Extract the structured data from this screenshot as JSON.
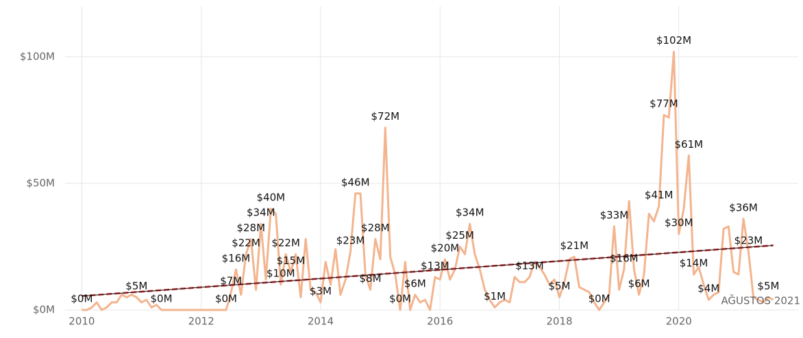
{
  "chart_data": {
    "type": "line",
    "annotation": "AĞUSTOS 2021",
    "x": [
      2010,
      2010.083,
      2010.167,
      2010.25,
      2010.333,
      2010.417,
      2010.5,
      2010.583,
      2010.667,
      2010.75,
      2010.833,
      2010.917,
      2011,
      2011.083,
      2011.167,
      2011.25,
      2011.333,
      2011.417,
      2011.5,
      2011.583,
      2011.667,
      2011.75,
      2011.833,
      2011.917,
      2012,
      2012.083,
      2012.167,
      2012.25,
      2012.333,
      2012.417,
      2012.5,
      2012.583,
      2012.667,
      2012.75,
      2012.833,
      2012.917,
      2013,
      2013.083,
      2013.167,
      2013.25,
      2013.333,
      2013.417,
      2013.5,
      2013.583,
      2013.667,
      2013.75,
      2013.833,
      2013.917,
      2014,
      2014.083,
      2014.167,
      2014.25,
      2014.333,
      2014.417,
      2014.5,
      2014.583,
      2014.667,
      2014.75,
      2014.833,
      2014.917,
      2015,
      2015.083,
      2015.167,
      2015.25,
      2015.333,
      2015.417,
      2015.5,
      2015.583,
      2015.667,
      2015.75,
      2015.833,
      2015.917,
      2016,
      2016.083,
      2016.167,
      2016.25,
      2016.333,
      2016.417,
      2016.5,
      2016.583,
      2016.667,
      2016.75,
      2016.833,
      2016.917,
      2017,
      2017.083,
      2017.167,
      2017.25,
      2017.333,
      2017.417,
      2017.5,
      2017.583,
      2017.667,
      2017.75,
      2017.833,
      2017.917,
      2018,
      2018.083,
      2018.167,
      2018.25,
      2018.333,
      2018.417,
      2018.5,
      2018.583,
      2018.667,
      2018.75,
      2018.833,
      2018.917,
      2019,
      2019.083,
      2019.167,
      2019.25,
      2019.333,
      2019.417,
      2019.5,
      2019.583,
      2019.667,
      2019.75,
      2019.833,
      2019.917,
      2020,
      2020.083,
      2020.167,
      2020.25,
      2020.333,
      2020.417,
      2020.5,
      2020.583,
      2020.667,
      2020.75,
      2020.833,
      2020.917,
      2021,
      2021.083,
      2021.167,
      2021.25,
      2021.333,
      2021.417,
      2021.5,
      2021.583
    ],
    "series": [
      {
        "color": "#f3b48e",
        "values": [
          0,
          0,
          1,
          3,
          0,
          1,
          3,
          3,
          6,
          5,
          6,
          5,
          3,
          4,
          1,
          2,
          0,
          0,
          0,
          0,
          0,
          0,
          0,
          0,
          0,
          0,
          0,
          0,
          0,
          0,
          7,
          16,
          6,
          22,
          28,
          8,
          34,
          12,
          40,
          38,
          10,
          22,
          15,
          22,
          5,
          28,
          8,
          7,
          3,
          19,
          10,
          24,
          6,
          12,
          23,
          46,
          46,
          14,
          8,
          28,
          20,
          72,
          21,
          14,
          0,
          19,
          0,
          6,
          3,
          4,
          0,
          13,
          12,
          20,
          12,
          16,
          25,
          22,
          34,
          22,
          16,
          8,
          4,
          1,
          3,
          4,
          3,
          13,
          11,
          11,
          13,
          19,
          17,
          14,
          10,
          12,
          5,
          11,
          20,
          21,
          9,
          8,
          7,
          3,
          0,
          3,
          6,
          33,
          8,
          16,
          43,
          16,
          6,
          14,
          38,
          35,
          41,
          77,
          76,
          102,
          30,
          40,
          61,
          14,
          17,
          10,
          4,
          6,
          7,
          32,
          33,
          15,
          14,
          36,
          23,
          5,
          4,
          3,
          5,
          4
        ],
        "value_labels": [
          "$0M",
          null,
          null,
          null,
          null,
          null,
          null,
          null,
          null,
          null,
          null,
          "$5M",
          null,
          null,
          null,
          null,
          "$0M",
          null,
          null,
          null,
          null,
          null,
          null,
          null,
          null,
          null,
          null,
          null,
          null,
          "$0M",
          "$7M",
          "$16M",
          null,
          "$22M",
          "$28M",
          null,
          "$34M",
          null,
          "$40M",
          null,
          "$10M",
          "$22M",
          "$15M",
          null,
          null,
          null,
          null,
          null,
          "$3M",
          null,
          null,
          null,
          null,
          null,
          "$23M",
          "$46M",
          null,
          null,
          "$8M",
          "$28M",
          null,
          "$72M",
          null,
          null,
          "$0M",
          null,
          null,
          "$6M",
          null,
          null,
          null,
          "$13M",
          null,
          "$20M",
          null,
          null,
          "$25M",
          null,
          "$34M",
          null,
          null,
          null,
          null,
          "$1M",
          null,
          null,
          null,
          null,
          null,
          null,
          "$13M",
          null,
          null,
          null,
          null,
          null,
          "$5M",
          null,
          null,
          "$21M",
          null,
          null,
          null,
          null,
          "$0M",
          null,
          null,
          "$33M",
          null,
          "$16M",
          null,
          null,
          "$6M",
          null,
          null,
          null,
          "$41M",
          "$77M",
          null,
          "$102M",
          "$30M",
          null,
          "$61M",
          "$14M",
          null,
          null,
          "$4M",
          null,
          null,
          null,
          null,
          null,
          null,
          "$36M",
          "$23M",
          null,
          null,
          null,
          "$5M",
          null
        ]
      }
    ],
    "trend": {
      "x": [
        2010,
        2021.583
      ],
      "values": [
        5.5,
        25.5
      ],
      "color": "#e8595a",
      "line_color": "#000000"
    },
    "xlim": [
      2009.72,
      2022.0
    ],
    "xticks": [
      2010,
      2012,
      2014,
      2016,
      2018,
      2020
    ],
    "ylim": [
      0,
      120
    ],
    "yticks": [
      {
        "value": 0,
        "label": "$0M"
      },
      {
        "value": 50,
        "label": "$50M"
      },
      {
        "value": 100,
        "label": "$100M"
      }
    ],
    "grid": true
  }
}
